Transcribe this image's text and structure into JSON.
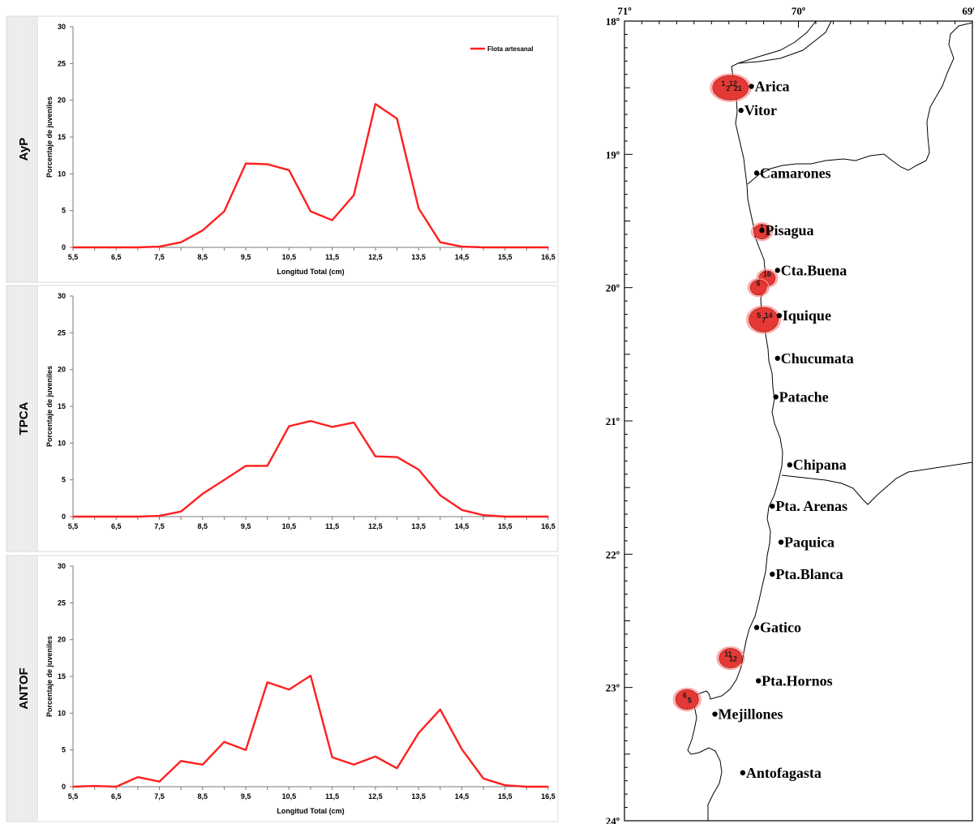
{
  "colors": {
    "series": "#ff1f1f",
    "axis": "#7a7a7a",
    "text": "#000000",
    "panel_border": "#d8d8d8",
    "label_band": "#f2f2f2",
    "map_line": "#000000",
    "cluster_fill": "#e53935"
  },
  "chart_data": [
    {
      "type": "line",
      "panel_label": "AyP",
      "ylabel": "Porcentaje de juveniles",
      "xlabel": "Longitud Total (cm)",
      "legend": [
        "Flota artesanal"
      ],
      "legend_position": "top-right",
      "xlim": [
        5.5,
        16.5
      ],
      "ylim": [
        0,
        30
      ],
      "x_ticks": [
        "5,5",
        "6,5",
        "7,5",
        "8,5",
        "9,5",
        "10,5",
        "11,5",
        "12,5",
        "13,5",
        "14,5",
        "15,5",
        "16,5"
      ],
      "y_ticks": [
        "0",
        "5",
        "10",
        "15",
        "20",
        "25",
        "30"
      ],
      "series": [
        {
          "name": "Flota artesanal",
          "x": [
            5.5,
            6,
            6.5,
            7,
            7.5,
            8,
            8.5,
            9,
            9.5,
            10,
            10.5,
            11,
            11.5,
            12,
            12.5,
            13,
            13.5,
            14,
            14.5,
            15,
            15.5,
            16,
            16.5
          ],
          "y": [
            0,
            0,
            0,
            0,
            0.1,
            0.7,
            2.3,
            4.9,
            11.4,
            11.3,
            10.5,
            4.9,
            3.7,
            7.1,
            19.5,
            17.5,
            5.3,
            0.7,
            0.1,
            0,
            0,
            0,
            0
          ]
        }
      ]
    },
    {
      "type": "line",
      "panel_label": "TPCA",
      "ylabel": "Porcentaje de juveniles",
      "xlabel": "",
      "legend": [],
      "xlim": [
        5.5,
        16.5
      ],
      "ylim": [
        0,
        30
      ],
      "x_ticks": [
        "5,5",
        "6,5",
        "7,5",
        "8,5",
        "9,5",
        "10,5",
        "11,5",
        "12,5",
        "13,5",
        "14,5",
        "15,5",
        "16,5"
      ],
      "y_ticks": [
        "0",
        "5",
        "10",
        "15",
        "20",
        "25",
        "30"
      ],
      "series": [
        {
          "x": [
            5.5,
            6,
            6.5,
            7,
            7.5,
            8,
            8.5,
            9,
            9.5,
            10,
            10.5,
            11,
            11.5,
            12,
            12.5,
            13,
            13.5,
            14,
            14.5,
            15,
            15.5,
            16,
            16.5
          ],
          "y": [
            0,
            0,
            0,
            0,
            0.1,
            0.7,
            3.1,
            5.0,
            6.9,
            6.9,
            12.3,
            13.0,
            12.2,
            12.8,
            8.2,
            8.1,
            6.4,
            2.9,
            0.9,
            0.2,
            0,
            0,
            0
          ]
        }
      ]
    },
    {
      "type": "line",
      "panel_label": "ANTOF",
      "ylabel": "Porcentaje de juveniles",
      "xlabel": "Longitud Total (cm)",
      "legend": [],
      "xlim": [
        5.5,
        16.5
      ],
      "ylim": [
        0,
        30
      ],
      "x_ticks": [
        "5,5",
        "6,5",
        "7,5",
        "8,5",
        "9,5",
        "10,5",
        "11,5",
        "12,5",
        "13,5",
        "14,5",
        "15,5",
        "16,5"
      ],
      "y_ticks": [
        "0",
        "5",
        "10",
        "15",
        "20",
        "25",
        "30"
      ],
      "series": [
        {
          "x": [
            5.5,
            6,
            6.5,
            7,
            7.5,
            8,
            8.5,
            9,
            9.5,
            10,
            10.5,
            11,
            11.5,
            12,
            12.5,
            13,
            13.5,
            14,
            14.5,
            15,
            15.5,
            16,
            16.5
          ],
          "y": [
            0,
            0.1,
            0,
            1.3,
            0.7,
            3.5,
            3.0,
            6.1,
            5.0,
            14.2,
            13.2,
            15.1,
            4.0,
            3.0,
            4.1,
            2.5,
            7.3,
            10.5,
            5.1,
            1.1,
            0.2,
            0,
            0
          ]
        }
      ]
    }
  ],
  "map": {
    "longitude_labels": [
      "71º",
      "70º",
      "69º"
    ],
    "latitude_labels": [
      "18º",
      "19º",
      "20º",
      "21º",
      "22º",
      "23º",
      "24º"
    ],
    "lon_range": [
      71,
      69
    ],
    "lat_range": [
      18,
      24
    ],
    "places": [
      {
        "name": "Arica",
        "lon": 70.27,
        "lat": 18.49
      },
      {
        "name": "Vitor",
        "lon": 70.33,
        "lat": 18.67
      },
      {
        "name": "Camarones",
        "lon": 70.24,
        "lat": 19.14
      },
      {
        "name": "Pisagua",
        "lon": 70.21,
        "lat": 19.57
      },
      {
        "name": "Cta.Buena",
        "lon": 70.12,
        "lat": 19.87
      },
      {
        "name": "Iquique",
        "lon": 70.11,
        "lat": 20.21
      },
      {
        "name": "Chucumata",
        "lon": 70.12,
        "lat": 20.53
      },
      {
        "name": "Patache",
        "lon": 70.13,
        "lat": 20.82
      },
      {
        "name": "Chipana",
        "lon": 70.05,
        "lat": 21.33
      },
      {
        "name": "Pta. Arenas",
        "lon": 70.15,
        "lat": 21.64
      },
      {
        "name": "Paquica",
        "lon": 70.1,
        "lat": 21.91
      },
      {
        "name": "Pta.Blanca",
        "lon": 70.15,
        "lat": 22.15
      },
      {
        "name": "Gatico",
        "lon": 70.24,
        "lat": 22.55
      },
      {
        "name": "Pta.Hornos",
        "lon": 70.23,
        "lat": 22.95
      },
      {
        "name": "Mejillones",
        "lon": 70.48,
        "lat": 23.2
      },
      {
        "name": "Antofagasta",
        "lon": 70.32,
        "lat": 23.64
      }
    ],
    "catch_clusters": [
      {
        "lon": 70.39,
        "lat": 18.5,
        "labels": [
          "1",
          "2",
          "12",
          "21"
        ]
      },
      {
        "lon": 70.21,
        "lat": 19.58,
        "labels": [
          "1"
        ]
      },
      {
        "lon": 70.18,
        "lat": 19.93,
        "labels": [
          "16"
        ]
      },
      {
        "lon": 70.23,
        "lat": 20.0,
        "labels": [
          "6"
        ]
      },
      {
        "lon": 70.2,
        "lat": 20.24,
        "labels": [
          "5",
          "7",
          "14"
        ]
      },
      {
        "lon": 70.39,
        "lat": 22.78,
        "labels": [
          "11",
          "12"
        ]
      },
      {
        "lon": 70.64,
        "lat": 23.09,
        "labels": [
          "6",
          "5"
        ]
      }
    ]
  }
}
